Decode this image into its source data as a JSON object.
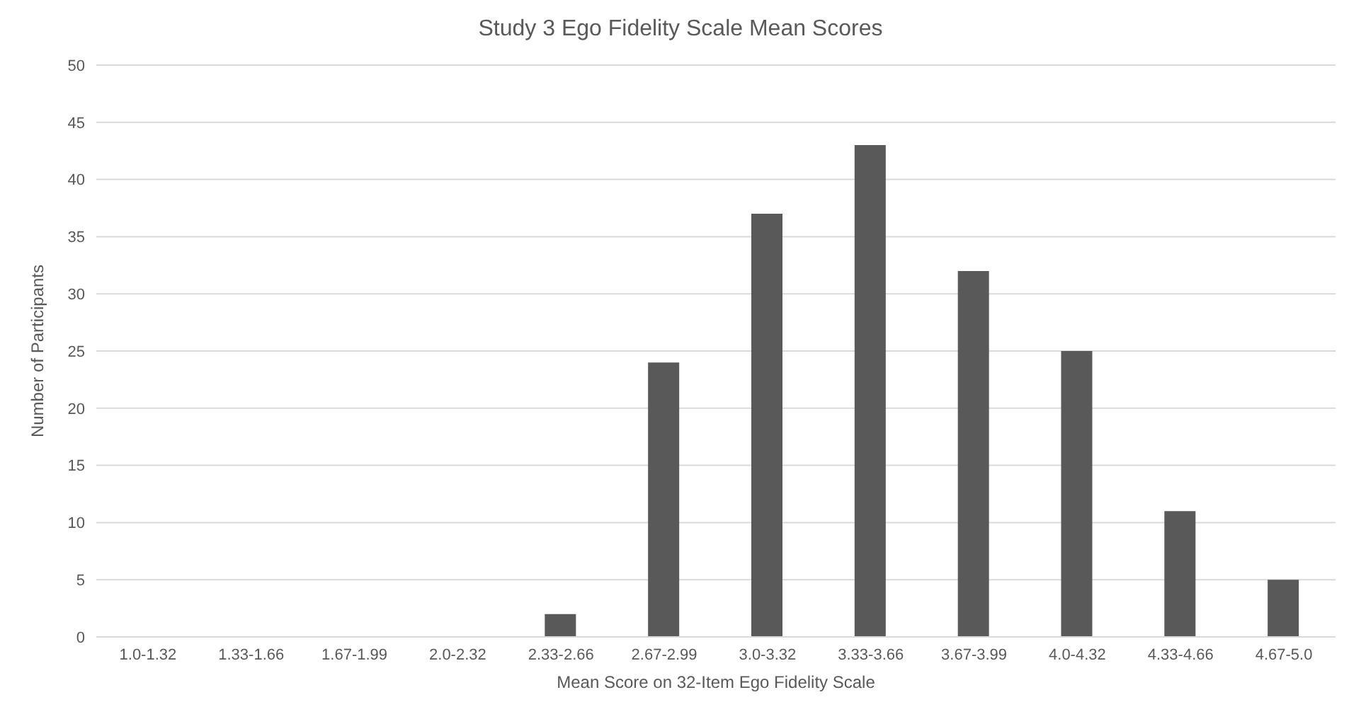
{
  "chart_data": {
    "type": "bar",
    "title": "Study 3 Ego Fidelity Scale Mean Scores",
    "xlabel": "Mean Score on 32-Item Ego Fidelity Scale",
    "ylabel": "Number of Participants",
    "categories": [
      "1.0-1.32",
      "1.33-1.66",
      "1.67-1.99",
      "2.0-2.32",
      "2.33-2.66",
      "2.67-2.99",
      "3.0-3.32",
      "3.33-3.66",
      "3.67-3.99",
      "4.0-4.32",
      "4.33-4.66",
      "4.67-5.0"
    ],
    "values": [
      0,
      0,
      0,
      0,
      2,
      24,
      37,
      43,
      32,
      25,
      11,
      5
    ],
    "color": "#595959",
    "ylim": [
      0,
      50
    ],
    "yticks": [
      0,
      5,
      10,
      15,
      20,
      25,
      30,
      35,
      40,
      45,
      50
    ],
    "grid": "y"
  }
}
